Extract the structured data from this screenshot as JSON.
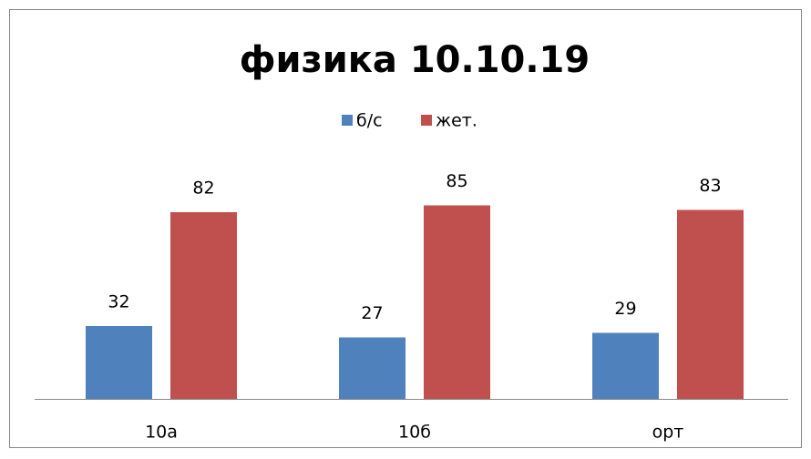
{
  "chart_data": {
    "type": "bar",
    "title": "физика 10.10.19",
    "categories": [
      "10а",
      "10б",
      "орт"
    ],
    "series": [
      {
        "name": "б/с",
        "color": "#4f81bd",
        "values": [
          32,
          27,
          29
        ]
      },
      {
        "name": "жет.",
        "color": "#c0504d",
        "values": [
          82,
          85,
          83
        ]
      }
    ],
    "ylim": [
      0,
      100
    ],
    "legend": "top"
  }
}
